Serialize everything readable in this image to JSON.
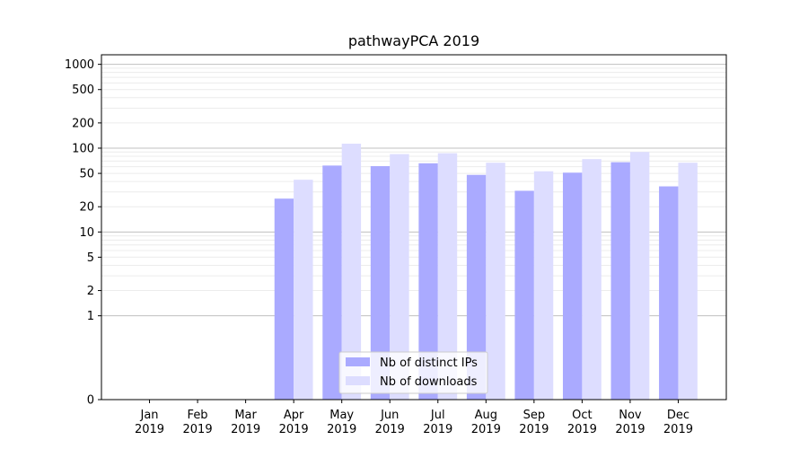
{
  "chart_data": {
    "type": "bar",
    "title": "pathwayPCA 2019",
    "xlabel": "",
    "ylabel": "",
    "y_scale": "symlog",
    "ylim": [
      0,
      1300
    ],
    "grid": "horizontal",
    "legend_position": "lower-center",
    "categories": [
      [
        "Jan",
        "2019"
      ],
      [
        "Feb",
        "2019"
      ],
      [
        "Mar",
        "2019"
      ],
      [
        "Apr",
        "2019"
      ],
      [
        "May",
        "2019"
      ],
      [
        "Jun",
        "2019"
      ],
      [
        "Jul",
        "2019"
      ],
      [
        "Aug",
        "2019"
      ],
      [
        "Sep",
        "2019"
      ],
      [
        "Oct",
        "2019"
      ],
      [
        "Nov",
        "2019"
      ],
      [
        "Dec",
        "2019"
      ]
    ],
    "y_ticks": [
      {
        "value": 0,
        "label": "0"
      },
      {
        "value": 1,
        "label": "1"
      },
      {
        "value": 2,
        "label": "2"
      },
      {
        "value": 5,
        "label": "5"
      },
      {
        "value": 10,
        "label": "10"
      },
      {
        "value": 20,
        "label": "20"
      },
      {
        "value": 50,
        "label": "50"
      },
      {
        "value": 100,
        "label": "100"
      },
      {
        "value": 200,
        "label": "200"
      },
      {
        "value": 500,
        "label": "500"
      },
      {
        "value": 1000,
        "label": "1000"
      }
    ],
    "series": [
      {
        "name": "Nb of distinct IPs",
        "color": "#aaaaff",
        "values": [
          0,
          0,
          0,
          25,
          62,
          61,
          66,
          48,
          31,
          51,
          68,
          35
        ]
      },
      {
        "name": "Nb of downloads",
        "color": "#ddddff",
        "values": [
          0,
          0,
          0,
          42,
          113,
          85,
          87,
          67,
          53,
          74,
          90,
          67
        ]
      }
    ]
  }
}
